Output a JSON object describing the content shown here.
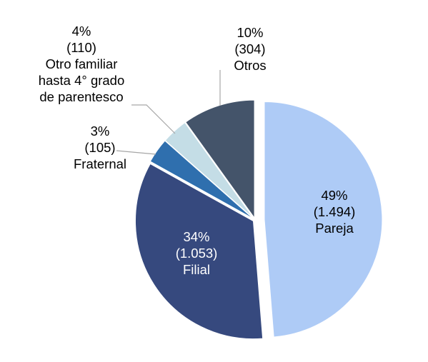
{
  "chart_data": {
    "type": "pie",
    "title": "",
    "slices": [
      {
        "label": "Pareja",
        "percent_label": "49%",
        "count_label": "(1.494)",
        "value": 1494,
        "color": "#aecbf6",
        "label_color": "#000000"
      },
      {
        "label": "Filial",
        "percent_label": "34%",
        "count_label": "(1.053)",
        "value": 1053,
        "color": "#36497e",
        "label_color": "#ffffff"
      },
      {
        "label": "Fraternal",
        "percent_label": "3%",
        "count_label": "(105)",
        "value": 105,
        "color": "#2f6fae",
        "label_color": "#000000"
      },
      {
        "label": "Otro familiar hasta 4° grado de parentesco",
        "label_lines": [
          "Otro familiar",
          "hasta 4° grado",
          "de parentesco"
        ],
        "percent_label": "4%",
        "count_label": "(110)",
        "value": 110,
        "color": "#c4dde6",
        "label_color": "#000000"
      },
      {
        "label": "Otros",
        "percent_label": "10%",
        "count_label": "(304)",
        "value": 304,
        "color": "#44546a",
        "label_color": "#000000"
      }
    ],
    "exploded_slice": "Pareja",
    "legend": "none"
  }
}
